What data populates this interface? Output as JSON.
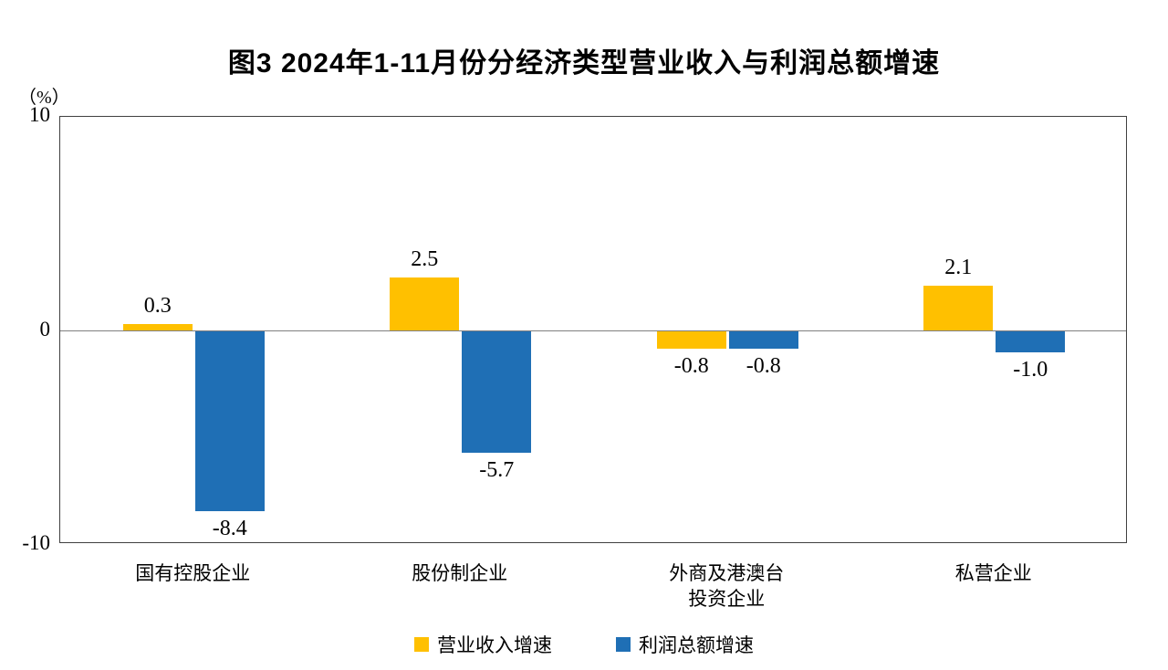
{
  "chart_data": {
    "type": "bar",
    "title": "图3  2024年1-11月份分经济类型营业收入与利润总额增速",
    "unit_label": "（%）",
    "ylim": [
      -10,
      10
    ],
    "y_ticks": [
      "10",
      "0",
      "-10"
    ],
    "grid": false,
    "legend_position": "bottom",
    "categories": [
      "国有控股企业",
      "股份制企业",
      "外商及港澳台\n投资企业",
      "私营企业"
    ],
    "series": [
      {
        "name": "营业收入增速",
        "color": "#FFC000",
        "values": [
          0.3,
          2.5,
          -0.8,
          2.1
        ],
        "value_labels": [
          "0.3",
          "2.5",
          "-0.8",
          "2.1"
        ]
      },
      {
        "name": "利润总额增速",
        "color": "#1F6FB5",
        "values": [
          -8.4,
          -5.7,
          -0.8,
          -1.0
        ],
        "value_labels": [
          "-8.4",
          "-5.7",
          "-0.8",
          "-1.0"
        ]
      }
    ]
  }
}
